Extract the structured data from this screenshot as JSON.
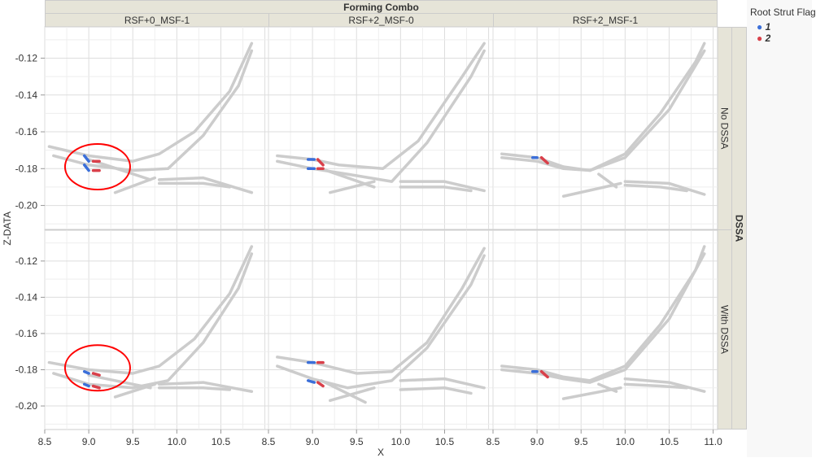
{
  "chart_data": {
    "type": "scatter",
    "title": "Forming Combo",
    "xlabel": "X",
    "ylabel": "Z-DATA",
    "xlim": [
      8.5,
      11.05
    ],
    "ylim": [
      -0.213,
      -0.103
    ],
    "xticks": [
      "8.5",
      "9.0",
      "9.5",
      "10.0",
      "10.5"
    ],
    "xticks_last": [
      "8.5",
      "9.0",
      "9.5",
      "10.0",
      "10.5",
      "11.0"
    ],
    "yticks": [
      "-0.12",
      "-0.14",
      "-0.16",
      "-0.18",
      "-0.20"
    ],
    "columns": [
      "RSF+0_MSF-1",
      "RSF+2_MSF-0",
      "RSF+2_MSF-1"
    ],
    "group_title": "DSSA",
    "rows": [
      "No DSSA",
      "With DSSA"
    ],
    "legend": {
      "title": "Root Strut Flag",
      "items": [
        {
          "label": "1",
          "color": "#3b6fd9"
        },
        {
          "label": "2",
          "color": "#d9404a"
        }
      ]
    },
    "base_color": "#cccccc",
    "annotation_color": "#ff0000",
    "panels": [
      {
        "row": 0,
        "col": 0,
        "gray": [
          [
            [
              8.55,
              -0.168
            ],
            [
              9.0,
              -0.173
            ],
            [
              9.5,
              -0.176
            ],
            [
              9.8,
              -0.172
            ],
            [
              10.2,
              -0.16
            ],
            [
              10.6,
              -0.138
            ],
            [
              10.85,
              -0.112
            ]
          ],
          [
            [
              8.6,
              -0.173
            ],
            [
              9.0,
              -0.178
            ],
            [
              9.5,
              -0.181
            ],
            [
              9.9,
              -0.18
            ],
            [
              10.3,
              -0.162
            ],
            [
              10.7,
              -0.135
            ],
            [
              10.85,
              -0.116
            ]
          ],
          [
            [
              9.0,
              -0.175
            ],
            [
              9.7,
              -0.186
            ]
          ],
          [
            [
              9.3,
              -0.193
            ],
            [
              9.75,
              -0.185
            ]
          ],
          [
            [
              9.8,
              -0.186
            ],
            [
              10.3,
              -0.185
            ],
            [
              10.85,
              -0.193
            ]
          ],
          [
            [
              9.8,
              -0.188
            ],
            [
              10.3,
              -0.188
            ],
            [
              10.6,
              -0.19
            ]
          ]
        ],
        "blue": [
          [
            [
              8.95,
              -0.173
            ],
            [
              9.0,
              -0.176
            ]
          ],
          [
            [
              8.95,
              -0.178
            ],
            [
              9.0,
              -0.181
            ]
          ]
        ],
        "red": [
          [
            [
              9.05,
              -0.176
            ],
            [
              9.12,
              -0.176
            ]
          ],
          [
            [
              9.05,
              -0.181
            ],
            [
              9.12,
              -0.181
            ]
          ]
        ],
        "circled": true
      },
      {
        "row": 0,
        "col": 1,
        "gray": [
          [
            [
              8.6,
              -0.173
            ],
            [
              9.0,
              -0.175
            ],
            [
              9.3,
              -0.178
            ],
            [
              9.8,
              -0.18
            ],
            [
              10.2,
              -0.165
            ],
            [
              10.7,
              -0.13
            ],
            [
              10.95,
              -0.112
            ]
          ],
          [
            [
              8.6,
              -0.176
            ],
            [
              9.0,
              -0.18
            ],
            [
              9.4,
              -0.183
            ],
            [
              9.9,
              -0.187
            ],
            [
              10.3,
              -0.166
            ],
            [
              10.8,
              -0.13
            ],
            [
              10.95,
              -0.116
            ]
          ],
          [
            [
              9.1,
              -0.18
            ],
            [
              9.7,
              -0.19
            ]
          ],
          [
            [
              9.2,
              -0.193
            ],
            [
              9.7,
              -0.187
            ]
          ],
          [
            [
              10.0,
              -0.187
            ],
            [
              10.5,
              -0.187
            ],
            [
              10.95,
              -0.192
            ]
          ],
          [
            [
              10.0,
              -0.19
            ],
            [
              10.5,
              -0.19
            ],
            [
              10.8,
              -0.192
            ]
          ]
        ],
        "blue": [
          [
            [
              8.95,
              -0.175
            ],
            [
              9.02,
              -0.175
            ]
          ],
          [
            [
              8.95,
              -0.18
            ],
            [
              9.02,
              -0.18
            ]
          ]
        ],
        "red": [
          [
            [
              9.06,
              -0.175
            ],
            [
              9.12,
              -0.178
            ]
          ],
          [
            [
              9.06,
              -0.18
            ],
            [
              9.12,
              -0.18
            ]
          ]
        ],
        "circled": false
      },
      {
        "row": 0,
        "col": 2,
        "gray": [
          [
            [
              8.6,
              -0.172
            ],
            [
              9.0,
              -0.174
            ],
            [
              9.3,
              -0.179
            ],
            [
              9.6,
              -0.181
            ],
            [
              10.0,
              -0.172
            ],
            [
              10.4,
              -0.15
            ],
            [
              10.8,
              -0.122
            ],
            [
              10.9,
              -0.112
            ]
          ],
          [
            [
              8.6,
              -0.174
            ],
            [
              9.0,
              -0.176
            ],
            [
              9.3,
              -0.18
            ],
            [
              9.6,
              -0.181
            ],
            [
              10.0,
              -0.174
            ],
            [
              10.5,
              -0.148
            ],
            [
              10.9,
              -0.116
            ]
          ],
          [
            [
              9.7,
              -0.183
            ],
            [
              9.9,
              -0.19
            ]
          ],
          [
            [
              9.3,
              -0.195
            ],
            [
              9.95,
              -0.188
            ]
          ],
          [
            [
              10.0,
              -0.187
            ],
            [
              10.5,
              -0.188
            ],
            [
              10.9,
              -0.194
            ]
          ],
          [
            [
              10.0,
              -0.189
            ],
            [
              10.4,
              -0.19
            ],
            [
              10.7,
              -0.192
            ]
          ]
        ],
        "blue": [
          [
            [
              8.95,
              -0.174
            ],
            [
              9.0,
              -0.174
            ]
          ]
        ],
        "red": [
          [
            [
              9.05,
              -0.174
            ],
            [
              9.12,
              -0.177
            ]
          ]
        ],
        "circled": false
      },
      {
        "row": 1,
        "col": 0,
        "gray": [
          [
            [
              8.55,
              -0.176
            ],
            [
              9.0,
              -0.18
            ],
            [
              9.5,
              -0.182
            ],
            [
              9.8,
              -0.178
            ],
            [
              10.2,
              -0.163
            ],
            [
              10.6,
              -0.138
            ],
            [
              10.85,
              -0.112
            ]
          ],
          [
            [
              8.6,
              -0.182
            ],
            [
              9.0,
              -0.188
            ],
            [
              9.5,
              -0.19
            ],
            [
              9.9,
              -0.186
            ],
            [
              10.3,
              -0.165
            ],
            [
              10.7,
              -0.135
            ],
            [
              10.85,
              -0.116
            ]
          ],
          [
            [
              9.0,
              -0.183
            ],
            [
              9.7,
              -0.19
            ]
          ],
          [
            [
              9.3,
              -0.195
            ],
            [
              9.75,
              -0.188
            ]
          ],
          [
            [
              9.8,
              -0.188
            ],
            [
              10.3,
              -0.187
            ],
            [
              10.85,
              -0.192
            ]
          ],
          [
            [
              9.8,
              -0.19
            ],
            [
              10.3,
              -0.19
            ],
            [
              10.6,
              -0.191
            ]
          ]
        ],
        "blue": [
          [
            [
              8.95,
              -0.181
            ],
            [
              9.0,
              -0.182
            ]
          ],
          [
            [
              8.95,
              -0.188
            ],
            [
              9.0,
              -0.189
            ]
          ]
        ],
        "red": [
          [
            [
              9.05,
              -0.182
            ],
            [
              9.12,
              -0.183
            ]
          ],
          [
            [
              9.05,
              -0.189
            ],
            [
              9.12,
              -0.19
            ]
          ]
        ],
        "circled": true
      },
      {
        "row": 1,
        "col": 1,
        "gray": [
          [
            [
              8.6,
              -0.173
            ],
            [
              9.0,
              -0.176
            ],
            [
              9.5,
              -0.182
            ],
            [
              9.9,
              -0.181
            ],
            [
              10.3,
              -0.165
            ],
            [
              10.7,
              -0.135
            ],
            [
              10.95,
              -0.113
            ]
          ],
          [
            [
              8.6,
              -0.178
            ],
            [
              9.0,
              -0.185
            ],
            [
              9.4,
              -0.19
            ],
            [
              9.9,
              -0.186
            ],
            [
              10.3,
              -0.168
            ],
            [
              10.8,
              -0.133
            ],
            [
              10.95,
              -0.117
            ]
          ],
          [
            [
              9.1,
              -0.186
            ],
            [
              9.6,
              -0.198
            ]
          ],
          [
            [
              9.2,
              -0.197
            ],
            [
              9.7,
              -0.19
            ]
          ],
          [
            [
              10.0,
              -0.186
            ],
            [
              10.5,
              -0.185
            ],
            [
              10.95,
              -0.19
            ]
          ],
          [
            [
              10.0,
              -0.191
            ],
            [
              10.5,
              -0.19
            ],
            [
              10.8,
              -0.193
            ]
          ]
        ],
        "blue": [
          [
            [
              8.95,
              -0.176
            ],
            [
              9.02,
              -0.176
            ]
          ],
          [
            [
              8.95,
              -0.186
            ],
            [
              9.02,
              -0.187
            ]
          ]
        ],
        "red": [
          [
            [
              9.06,
              -0.176
            ],
            [
              9.12,
              -0.176
            ]
          ],
          [
            [
              9.06,
              -0.187
            ],
            [
              9.12,
              -0.189
            ]
          ]
        ],
        "circled": false
      },
      {
        "row": 1,
        "col": 2,
        "gray": [
          [
            [
              8.6,
              -0.178
            ],
            [
              9.0,
              -0.18
            ],
            [
              9.3,
              -0.184
            ],
            [
              9.6,
              -0.186
            ],
            [
              10.0,
              -0.178
            ],
            [
              10.4,
              -0.155
            ],
            [
              10.8,
              -0.125
            ],
            [
              10.9,
              -0.112
            ]
          ],
          [
            [
              8.6,
              -0.18
            ],
            [
              9.0,
              -0.182
            ],
            [
              9.3,
              -0.185
            ],
            [
              9.6,
              -0.187
            ],
            [
              10.0,
              -0.18
            ],
            [
              10.5,
              -0.152
            ],
            [
              10.9,
              -0.116
            ]
          ],
          [
            [
              9.7,
              -0.188
            ],
            [
              9.9,
              -0.192
            ]
          ],
          [
            [
              9.3,
              -0.196
            ],
            [
              9.95,
              -0.19
            ]
          ],
          [
            [
              10.0,
              -0.185
            ],
            [
              10.5,
              -0.187
            ],
            [
              10.9,
              -0.192
            ]
          ],
          [
            [
              10.0,
              -0.188
            ],
            [
              10.4,
              -0.189
            ],
            [
              10.7,
              -0.19
            ]
          ]
        ],
        "blue": [
          [
            [
              8.95,
              -0.181
            ],
            [
              9.0,
              -0.181
            ]
          ]
        ],
        "red": [
          [
            [
              9.05,
              -0.181
            ],
            [
              9.12,
              -0.184
            ]
          ]
        ],
        "circled": false
      }
    ]
  }
}
